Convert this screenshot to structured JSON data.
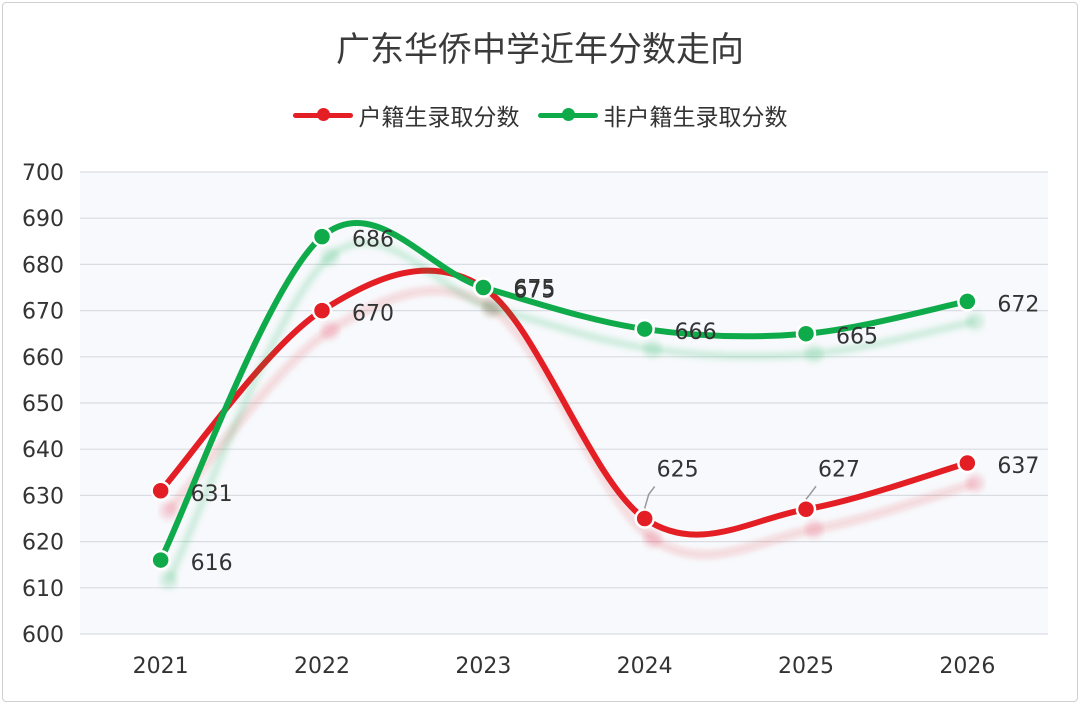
{
  "chart_data": {
    "type": "line",
    "title": "广东华侨中学近年分数走向",
    "x": [
      "2021",
      "2022",
      "2023",
      "2024",
      "2025",
      "2026"
    ],
    "series": [
      {
        "name": "户籍生录取分数",
        "values": [
          631,
          670,
          675,
          625,
          627,
          637
        ],
        "color": "#e31e24"
      },
      {
        "name": "非户籍生录取分数",
        "values": [
          616,
          686,
          675,
          666,
          665,
          672
        ],
        "color": "#0faa4a"
      }
    ],
    "ylim": [
      600,
      700
    ],
    "yticks": [
      "600",
      "610",
      "620",
      "630",
      "640",
      "650",
      "660",
      "670",
      "680",
      "690",
      "700"
    ],
    "grid": true,
    "legend": "top-center",
    "smooth": true
  }
}
